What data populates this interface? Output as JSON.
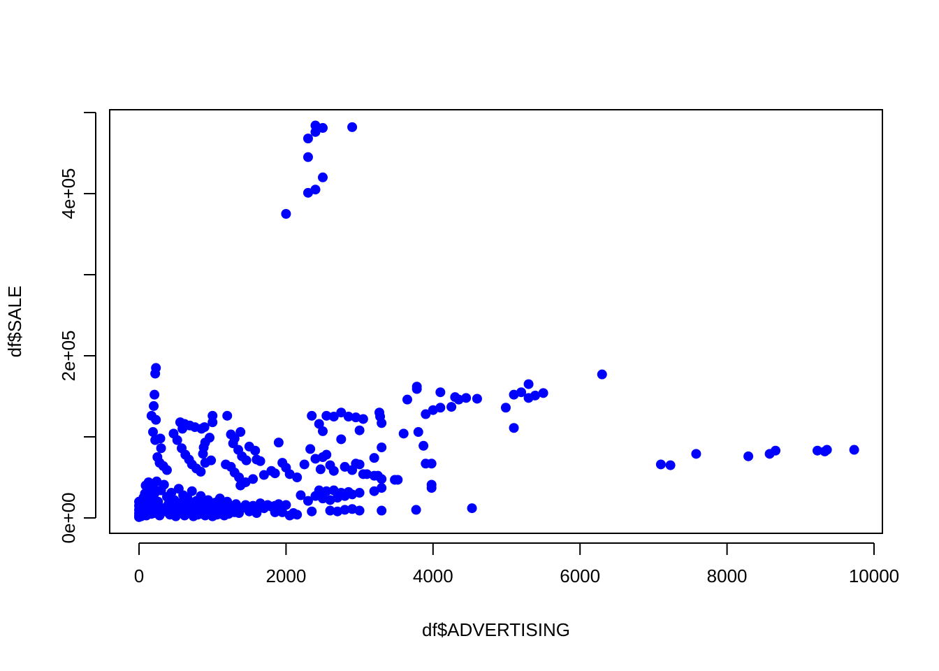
{
  "chart_data": {
    "type": "scatter",
    "title": "",
    "xlabel": "df$ADVERTISING",
    "ylabel": "df$SALE",
    "xlim": [
      0,
      10000
    ],
    "ylim": [
      0,
      500000
    ],
    "x_ticks": [
      0,
      2000,
      4000,
      6000,
      8000,
      10000
    ],
    "x_tick_labels": [
      "0",
      "2000",
      "4000",
      "6000",
      "8000",
      "10000"
    ],
    "y_ticks": [
      0,
      100000,
      200000,
      300000,
      400000,
      500000
    ],
    "y_tick_labels": [
      "0e+00",
      "",
      "2e+05",
      "",
      "4e+05",
      ""
    ],
    "grid": false,
    "point_color": "#0000ff",
    "series": [
      {
        "points": [
          [
            2000,
            375000
          ],
          [
            2300,
            401000
          ],
          [
            2400,
            405000
          ],
          [
            2500,
            420000
          ],
          [
            2300,
            445000
          ],
          [
            2300,
            468000
          ],
          [
            2400,
            476000
          ],
          [
            2400,
            484000
          ],
          [
            2500,
            481000
          ],
          [
            2900,
            482000
          ],
          [
            6300,
            177000
          ],
          [
            230,
            185000
          ],
          [
            220,
            178000
          ],
          [
            210,
            152000
          ],
          [
            200,
            138000
          ],
          [
            170,
            126000
          ],
          [
            230,
            121000
          ],
          [
            190,
            106000
          ],
          [
            220,
            96000
          ],
          [
            290,
            98000
          ],
          [
            300,
            86000
          ],
          [
            250,
            75000
          ],
          [
            280,
            68000
          ],
          [
            330,
            64000
          ],
          [
            380,
            59000
          ],
          [
            470,
            104000
          ],
          [
            520,
            96000
          ],
          [
            560,
            118000
          ],
          [
            590,
            110000
          ],
          [
            620,
            116000
          ],
          [
            690,
            114000
          ],
          [
            760,
            112000
          ],
          [
            850,
            110000
          ],
          [
            890,
            112000
          ],
          [
            580,
            86000
          ],
          [
            630,
            78000
          ],
          [
            680,
            72000
          ],
          [
            720,
            66000
          ],
          [
            780,
            61000
          ],
          [
            840,
            57000
          ],
          [
            900,
            68000
          ],
          [
            980,
            71000
          ],
          [
            1000,
            118000
          ],
          [
            1000,
            126000
          ],
          [
            900,
            93000
          ],
          [
            960,
            99000
          ],
          [
            880,
            87000
          ],
          [
            870,
            79000
          ],
          [
            1200,
            126000
          ],
          [
            1250,
            103000
          ],
          [
            1300,
            98000
          ],
          [
            1380,
            106000
          ],
          [
            1280,
            92000
          ],
          [
            1350,
            84000
          ],
          [
            1400,
            76000
          ],
          [
            1460,
            71000
          ],
          [
            1500,
            88000
          ],
          [
            1580,
            83000
          ],
          [
            1600,
            72000
          ],
          [
            1650,
            70000
          ],
          [
            1900,
            93000
          ],
          [
            1950,
            68000
          ],
          [
            2000,
            62000
          ],
          [
            1800,
            58000
          ],
          [
            1850,
            55000
          ],
          [
            1700,
            53000
          ],
          [
            1550,
            48000
          ],
          [
            1450,
            44000
          ],
          [
            1380,
            40000
          ],
          [
            1250,
            63000
          ],
          [
            1180,
            66000
          ],
          [
            1300,
            56000
          ],
          [
            1360,
            50000
          ],
          [
            2050,
            54000
          ],
          [
            2150,
            50000
          ],
          [
            2250,
            66000
          ],
          [
            2330,
            85000
          ],
          [
            2400,
            73000
          ],
          [
            2500,
            75000
          ],
          [
            2470,
            60000
          ],
          [
            2550,
            78000
          ],
          [
            2600,
            65000
          ],
          [
            2650,
            58000
          ],
          [
            2350,
            126000
          ],
          [
            2450,
            116000
          ],
          [
            2500,
            107000
          ],
          [
            2550,
            126000
          ],
          [
            2650,
            125000
          ],
          [
            2750,
            130000
          ],
          [
            2850,
            125000
          ],
          [
            2750,
            97000
          ],
          [
            2950,
            124000
          ],
          [
            3000,
            108000
          ],
          [
            3050,
            122000
          ],
          [
            2800,
            63000
          ],
          [
            2900,
            59000
          ],
          [
            2950,
            67000
          ],
          [
            3000,
            66000
          ],
          [
            3050,
            54000
          ],
          [
            3100,
            54000
          ],
          [
            3200,
            52000
          ],
          [
            3200,
            74000
          ],
          [
            3250,
            52000
          ],
          [
            3300,
            48000
          ],
          [
            3300,
            87000
          ],
          [
            3270,
            130000
          ],
          [
            3280,
            125000
          ],
          [
            3300,
            117000
          ],
          [
            3480,
            47000
          ],
          [
            3520,
            47000
          ],
          [
            3300,
            37000
          ],
          [
            3200,
            33000
          ],
          [
            3000,
            31000
          ],
          [
            2900,
            29000
          ],
          [
            2800,
            27000
          ],
          [
            2700,
            25000
          ],
          [
            2600,
            22000
          ],
          [
            2500,
            24000
          ],
          [
            2400,
            27000
          ],
          [
            2300,
            21000
          ],
          [
            2200,
            28000
          ],
          [
            2450,
            34000
          ],
          [
            2550,
            33000
          ],
          [
            2650,
            34000
          ],
          [
            2750,
            31000
          ],
          [
            2850,
            32000
          ],
          [
            3600,
            104000
          ],
          [
            3650,
            146000
          ],
          [
            3780,
            159000
          ],
          [
            3780,
            162000
          ],
          [
            3800,
            106000
          ],
          [
            3870,
            89000
          ],
          [
            3900,
            128000
          ],
          [
            3900,
            67000
          ],
          [
            3980,
            67000
          ],
          [
            3980,
            41000
          ],
          [
            3980,
            37000
          ],
          [
            4000,
            133000
          ],
          [
            4100,
            136000
          ],
          [
            4100,
            155000
          ],
          [
            4250,
            137000
          ],
          [
            4300,
            149000
          ],
          [
            4350,
            146000
          ],
          [
            4450,
            148000
          ],
          [
            4600,
            147000
          ],
          [
            4530,
            12000
          ],
          [
            3770,
            10000
          ],
          [
            3300,
            9000
          ],
          [
            3000,
            9000
          ],
          [
            2900,
            11000
          ],
          [
            2800,
            10000
          ],
          [
            2700,
            8000
          ],
          [
            2600,
            9000
          ],
          [
            2350,
            8000
          ],
          [
            2100,
            6000
          ],
          [
            1950,
            7000
          ],
          [
            1850,
            7000
          ],
          [
            1600,
            6000
          ],
          [
            1300,
            7000
          ],
          [
            1100,
            5000
          ],
          [
            4990,
            136000
          ],
          [
            5100,
            152000
          ],
          [
            5100,
            111000
          ],
          [
            5200,
            155000
          ],
          [
            5300,
            165000
          ],
          [
            5300,
            148000
          ],
          [
            5390,
            151000
          ],
          [
            5500,
            154000
          ],
          [
            7100,
            66000
          ],
          [
            7230,
            65000
          ],
          [
            7580,
            79000
          ],
          [
            8290,
            76000
          ],
          [
            8580,
            79000
          ],
          [
            8660,
            83000
          ],
          [
            9230,
            83000
          ],
          [
            9330,
            82000
          ],
          [
            9360,
            84000
          ],
          [
            9730,
            84000
          ],
          [
            0,
            1000
          ],
          [
            0,
            3000
          ],
          [
            0,
            6000
          ],
          [
            0,
            10000
          ],
          [
            0,
            15000
          ],
          [
            0,
            20000
          ],
          [
            30,
            2000
          ],
          [
            40,
            5000
          ],
          [
            50,
            12000
          ],
          [
            60,
            25000
          ],
          [
            70,
            8000
          ],
          [
            80,
            30000
          ],
          [
            90,
            40000
          ],
          [
            100,
            3000
          ],
          [
            110,
            18000
          ],
          [
            120,
            35000
          ],
          [
            130,
            44000
          ],
          [
            140,
            9000
          ],
          [
            150,
            28000
          ],
          [
            160,
            42000
          ],
          [
            170,
            5000
          ],
          [
            180,
            22000
          ],
          [
            190,
            38000
          ],
          [
            200,
            14000
          ],
          [
            210,
            30000
          ],
          [
            220,
            6000
          ],
          [
            240,
            45000
          ],
          [
            260,
            20000
          ],
          [
            280,
            3000
          ],
          [
            300,
            34000
          ],
          [
            320,
            12000
          ],
          [
            340,
            41000
          ],
          [
            360,
            8000
          ],
          [
            380,
            26000
          ],
          [
            400,
            17000
          ],
          [
            420,
            4000
          ],
          [
            440,
            31000
          ],
          [
            460,
            10000
          ],
          [
            480,
            22000
          ],
          [
            500,
            2000
          ],
          [
            520,
            14000
          ],
          [
            540,
            36000
          ],
          [
            560,
            7000
          ],
          [
            580,
            19000
          ],
          [
            600,
            28000
          ],
          [
            620,
            3000
          ],
          [
            640,
            11000
          ],
          [
            660,
            24000
          ],
          [
            680,
            6000
          ],
          [
            700,
            16000
          ],
          [
            720,
            33000
          ],
          [
            740,
            2000
          ],
          [
            760,
            9000
          ],
          [
            780,
            21000
          ],
          [
            800,
            4000
          ],
          [
            820,
            13000
          ],
          [
            840,
            27000
          ],
          [
            860,
            5000
          ],
          [
            880,
            17000
          ],
          [
            900,
            3000
          ],
          [
            920,
            11000
          ],
          [
            940,
            22000
          ],
          [
            960,
            6000
          ],
          [
            980,
            15000
          ],
          [
            1000,
            2000
          ],
          [
            1020,
            9000
          ],
          [
            1040,
            19000
          ],
          [
            1060,
            4000
          ],
          [
            1080,
            12000
          ],
          [
            1100,
            24000
          ],
          [
            1120,
            7000
          ],
          [
            1140,
            16000
          ],
          [
            1160,
            3000
          ],
          [
            1180,
            10000
          ],
          [
            1200,
            20000
          ],
          [
            1220,
            5000
          ],
          [
            1250,
            14000
          ],
          [
            1280,
            9000
          ],
          [
            1320,
            17000
          ],
          [
            1360,
            6000
          ],
          [
            1400,
            12000
          ],
          [
            1450,
            16000
          ],
          [
            1500,
            8000
          ],
          [
            1550,
            15000
          ],
          [
            1600,
            13000
          ],
          [
            1650,
            18000
          ],
          [
            1700,
            12000
          ],
          [
            1750,
            16000
          ],
          [
            1800,
            14000
          ],
          [
            1850,
            15000
          ],
          [
            1900,
            17000
          ],
          [
            1950,
            13000
          ],
          [
            2000,
            16000
          ],
          [
            2050,
            3000
          ],
          [
            2100,
            5000
          ],
          [
            2150,
            4000
          ]
        ]
      }
    ]
  }
}
